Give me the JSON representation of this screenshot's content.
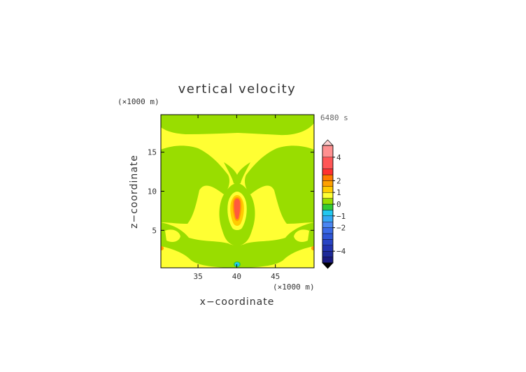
{
  "chart_data": {
    "type": "heatmap",
    "title": "vertical velocity",
    "xlabel": "x−coordinate",
    "ylabel": "z−coordinate",
    "x_unit": "(×1000 m)",
    "y_unit": "(×1000 m)",
    "time_label": "6480 s",
    "xlim": [
      30.2,
      50
    ],
    "ylim": [
      0.2,
      19.8
    ],
    "x_ticks": [
      35,
      40,
      45
    ],
    "y_ticks": [
      5,
      10,
      15
    ],
    "x_tick_labels": [
      "35",
      "40",
      "45"
    ],
    "y_tick_labels": [
      "5",
      "10",
      "15"
    ],
    "colorbar": {
      "levels": [
        -5,
        -4.5,
        -4,
        -3.5,
        -3,
        -2.5,
        -2,
        -1.5,
        -1,
        -0.5,
        0,
        0.5,
        1,
        1.5,
        2,
        2.5,
        3,
        4,
        5
      ],
      "colors": [
        "#1a1a80",
        "#1e2a99",
        "#2233b0",
        "#2844c4",
        "#2e55d6",
        "#3a6ae6",
        "#4a86f2",
        "#35a8f5",
        "#22c8f0",
        "#33cc33",
        "#99dd00",
        "#ffff33",
        "#ffcc00",
        "#ffa000",
        "#ff7a00",
        "#ff3030",
        "#ff5555",
        "#ff9090",
        "#ffb0b0"
      ],
      "tick_values": [
        4,
        2,
        1,
        0,
        -1,
        -2,
        -4
      ],
      "tick_labels": [
        "4",
        "2",
        "1",
        "0",
        "−1",
        "−2",
        "−4"
      ],
      "extend": "both"
    },
    "grid": false
  }
}
